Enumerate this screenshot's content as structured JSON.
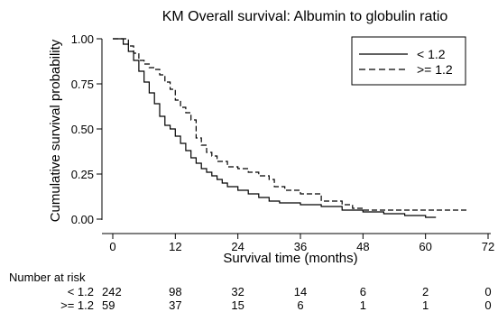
{
  "chart_data": {
    "type": "line",
    "step": true,
    "title": "KM Overall survival: Albumin to globulin ratio",
    "xlabel": "Survival time (months)",
    "ylabel": "Cumulative survival probability",
    "xlim": [
      0,
      72
    ],
    "ylim": [
      0,
      1
    ],
    "xticks": [
      "0",
      "12",
      "24",
      "36",
      "48",
      "60",
      "72"
    ],
    "yticks": [
      "0.00",
      "0.25",
      "0.50",
      "0.75",
      "1.00"
    ],
    "grid": false,
    "legend_position": "top-right",
    "series": [
      {
        "name": "< 1.2",
        "style": "solid",
        "points": [
          [
            0,
            1.0
          ],
          [
            1,
            1.0
          ],
          [
            2,
            0.97
          ],
          [
            3,
            0.93
          ],
          [
            4,
            0.88
          ],
          [
            5,
            0.82
          ],
          [
            6,
            0.76
          ],
          [
            7,
            0.7
          ],
          [
            8,
            0.64
          ],
          [
            9,
            0.57
          ],
          [
            10,
            0.52
          ],
          [
            11,
            0.5
          ],
          [
            12,
            0.46
          ],
          [
            13,
            0.42
          ],
          [
            14,
            0.38
          ],
          [
            15,
            0.34
          ],
          [
            16,
            0.31
          ],
          [
            17,
            0.28
          ],
          [
            18,
            0.26
          ],
          [
            19,
            0.24
          ],
          [
            20,
            0.22
          ],
          [
            21,
            0.2
          ],
          [
            22,
            0.18
          ],
          [
            24,
            0.16
          ],
          [
            26,
            0.14
          ],
          [
            28,
            0.12
          ],
          [
            30,
            0.1
          ],
          [
            32,
            0.09
          ],
          [
            36,
            0.08
          ],
          [
            40,
            0.07
          ],
          [
            44,
            0.05
          ],
          [
            48,
            0.04
          ],
          [
            52,
            0.03
          ],
          [
            56,
            0.02
          ],
          [
            60,
            0.01
          ],
          [
            62,
            0.01
          ]
        ]
      },
      {
        "name": ">= 1.2",
        "style": "dashed",
        "points": [
          [
            0,
            1.0
          ],
          [
            2,
            1.0
          ],
          [
            3,
            0.96
          ],
          [
            4,
            0.92
          ],
          [
            5,
            0.88
          ],
          [
            6,
            0.86
          ],
          [
            7,
            0.84
          ],
          [
            8,
            0.83
          ],
          [
            9,
            0.8
          ],
          [
            10,
            0.76
          ],
          [
            11,
            0.72
          ],
          [
            12,
            0.66
          ],
          [
            13,
            0.62
          ],
          [
            14,
            0.59
          ],
          [
            15,
            0.55
          ],
          [
            16,
            0.45
          ],
          [
            17,
            0.41
          ],
          [
            18,
            0.37
          ],
          [
            19,
            0.35
          ],
          [
            20,
            0.32
          ],
          [
            22,
            0.29
          ],
          [
            24,
            0.28
          ],
          [
            26,
            0.26
          ],
          [
            28,
            0.24
          ],
          [
            30,
            0.22
          ],
          [
            31,
            0.18
          ],
          [
            33,
            0.16
          ],
          [
            36,
            0.14
          ],
          [
            40,
            0.1
          ],
          [
            44,
            0.08
          ],
          [
            46,
            0.06
          ],
          [
            48,
            0.05
          ],
          [
            68,
            0.05
          ]
        ]
      }
    ],
    "risk_table": {
      "title": "Number at risk",
      "times": [
        0,
        12,
        24,
        36,
        48,
        60,
        72
      ],
      "rows": [
        {
          "label": "< 1.2",
          "counts": [
            "242",
            "98",
            "32",
            "14",
            "6",
            "2",
            "0"
          ]
        },
        {
          "label": ">= 1.2",
          "counts": [
            "59",
            "37",
            "15",
            "6",
            "1",
            "1",
            "0"
          ]
        }
      ]
    }
  }
}
